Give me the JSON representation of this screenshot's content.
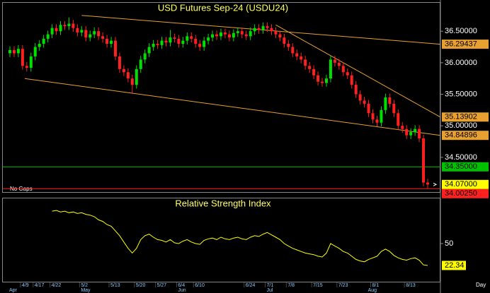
{
  "chart_data": {
    "type": "candlestick",
    "title": "USD Futures Sep-24 (USDU24)",
    "note": "No Gaps",
    "period": "Day",
    "up_color": "#00e000",
    "down_color": "#ff2020",
    "ylim": [
      33.95,
      36.95
    ],
    "yticks": [
      {
        "value": 36.5,
        "label": "36.50000"
      },
      {
        "value": 36.0,
        "label": "36.00000"
      },
      {
        "value": 35.5,
        "label": "35.50000"
      },
      {
        "value": 35.0,
        "label": "35.00000"
      },
      {
        "value": 34.5,
        "label": "34.50000"
      }
    ],
    "categories": [
      null,
      null,
      null,
      "4/9",
      null,
      null,
      "4/17",
      null,
      null,
      null,
      "4/22",
      null,
      null,
      null,
      null,
      null,
      null,
      "5/2",
      null,
      null,
      null,
      null,
      null,
      null,
      "5/13",
      null,
      null,
      null,
      null,
      null,
      "5/20",
      null,
      null,
      null,
      null,
      "5/27",
      null,
      null,
      null,
      null,
      "6/4",
      null,
      null,
      null,
      "6/10",
      null,
      null,
      null,
      null,
      null,
      null,
      null,
      null,
      null,
      null,
      null,
      "6/24",
      null,
      null,
      null,
      null,
      "7/1",
      null,
      null,
      null,
      null,
      "7/8",
      null,
      null,
      null,
      null,
      null,
      "7/15",
      null,
      null,
      null,
      null,
      null,
      "7/23",
      null,
      null,
      null,
      null,
      null,
      null,
      null,
      "8/1",
      null,
      null,
      null,
      null,
      null,
      null,
      null,
      "8/13",
      null,
      null,
      null,
      null,
      null,
      null
    ],
    "months": [
      "Apr",
      null,
      null,
      null,
      null,
      null,
      null,
      null,
      null,
      null,
      null,
      null,
      null,
      null,
      null,
      null,
      null,
      "May",
      null,
      null,
      null,
      null,
      null,
      null,
      null,
      null,
      null,
      null,
      null,
      null,
      null,
      null,
      null,
      null,
      null,
      null,
      null,
      null,
      null,
      null,
      "Jun",
      null,
      null,
      null,
      null,
      null,
      null,
      null,
      null,
      null,
      null,
      null,
      null,
      null,
      null,
      null,
      null,
      null,
      null,
      null,
      null,
      "Jul",
      null,
      null,
      null,
      null,
      null,
      null,
      null,
      null,
      null,
      null,
      null,
      null,
      null,
      null,
      null,
      null,
      null,
      null,
      null,
      null,
      null,
      null,
      null,
      "Aug",
      null,
      null,
      null,
      null,
      null,
      null,
      null,
      null,
      null,
      null,
      null,
      null,
      null,
      null
    ],
    "open": [
      36.15,
      36.2,
      36.15,
      36.22,
      35.95,
      35.92,
      36.1,
      36.25,
      36.3,
      36.38,
      36.45,
      36.55,
      36.5,
      36.6,
      36.58,
      36.62,
      36.55,
      36.48,
      36.52,
      36.4,
      36.45,
      36.5,
      36.42,
      36.38,
      36.3,
      36.35,
      36.1,
      35.9,
      35.85,
      35.75,
      35.65,
      35.9,
      36.05,
      36.15,
      36.25,
      36.3,
      36.28,
      36.35,
      36.32,
      36.4,
      36.38,
      36.3,
      36.35,
      36.42,
      36.38,
      36.3,
      36.25,
      36.35,
      36.4,
      36.45,
      36.42,
      36.48,
      36.45,
      36.4,
      36.47,
      36.5,
      36.45,
      36.42,
      36.5,
      36.55,
      36.52,
      36.58,
      36.55,
      36.5,
      36.45,
      36.4,
      36.3,
      36.25,
      36.15,
      36.1,
      36.05,
      35.95,
      35.9,
      35.8,
      35.7,
      35.68,
      35.75,
      36.05,
      36.0,
      35.95,
      35.85,
      35.8,
      35.65,
      35.5,
      35.4,
      35.35,
      35.2,
      35.1,
      35.05,
      35.25,
      35.45,
      35.35,
      35.2,
      35.0,
      34.95,
      34.85,
      34.9,
      34.95,
      34.8,
      34.1
    ],
    "high": [
      36.26,
      36.26,
      36.28,
      36.28,
      36.01,
      36.16,
      36.31,
      36.36,
      36.44,
      36.51,
      36.61,
      36.61,
      36.66,
      36.66,
      36.72,
      36.68,
      36.61,
      36.58,
      36.58,
      36.51,
      36.56,
      36.56,
      36.48,
      36.44,
      36.41,
      36.41,
      36.16,
      35.96,
      35.91,
      35.81,
      35.96,
      36.11,
      36.21,
      36.31,
      36.36,
      36.36,
      36.41,
      36.41,
      36.52,
      36.46,
      36.44,
      36.41,
      36.48,
      36.48,
      36.44,
      36.36,
      36.41,
      36.46,
      36.51,
      36.51,
      36.54,
      36.54,
      36.51,
      36.53,
      36.56,
      36.56,
      36.51,
      36.56,
      36.61,
      36.61,
      36.64,
      36.64,
      36.61,
      36.56,
      36.51,
      36.46,
      36.36,
      36.31,
      36.21,
      36.16,
      36.11,
      36.01,
      35.96,
      35.86,
      35.76,
      35.81,
      36.11,
      36.11,
      36.06,
      36.01,
      35.91,
      35.86,
      35.71,
      35.56,
      35.46,
      35.41,
      35.26,
      35.16,
      35.31,
      35.51,
      35.51,
      35.41,
      35.26,
      35.06,
      35.01,
      34.96,
      35.01,
      35.01,
      34.86,
      34.16
    ],
    "low": [
      36.09,
      36.09,
      36.09,
      35.89,
      35.86,
      35.86,
      36.04,
      36.19,
      36.24,
      36.32,
      36.39,
      36.44,
      36.44,
      36.52,
      36.52,
      36.49,
      36.42,
      36.42,
      36.34,
      36.34,
      36.39,
      36.36,
      36.32,
      36.24,
      36.24,
      36.04,
      35.84,
      35.79,
      35.69,
      35.52,
      35.59,
      35.84,
      35.99,
      36.09,
      36.19,
      36.22,
      36.22,
      36.26,
      36.26,
      36.32,
      36.24,
      36.24,
      36.29,
      36.32,
      36.24,
      36.19,
      36.19,
      36.29,
      36.34,
      36.36,
      36.36,
      36.39,
      36.34,
      36.34,
      36.41,
      36.39,
      36.36,
      36.36,
      36.44,
      36.46,
      36.46,
      36.49,
      36.44,
      36.39,
      36.34,
      36.24,
      36.19,
      36.09,
      36.04,
      35.99,
      35.89,
      35.84,
      35.74,
      35.64,
      35.62,
      35.62,
      35.69,
      35.94,
      35.89,
      35.79,
      35.74,
      35.59,
      35.44,
      35.34,
      35.29,
      35.14,
      35.04,
      34.99,
      34.99,
      35.19,
      35.29,
      35.14,
      34.94,
      34.89,
      34.79,
      34.79,
      34.84,
      34.74,
      34.04,
      34.01
    ],
    "close": [
      36.2,
      36.15,
      36.22,
      35.95,
      35.92,
      36.1,
      36.25,
      36.3,
      36.38,
      36.45,
      36.55,
      36.5,
      36.6,
      36.58,
      36.62,
      36.55,
      36.48,
      36.52,
      36.4,
      36.45,
      36.5,
      36.42,
      36.38,
      36.3,
      36.35,
      36.1,
      35.9,
      35.85,
      35.75,
      35.65,
      35.9,
      36.05,
      36.15,
      36.25,
      36.3,
      36.28,
      36.35,
      36.32,
      36.4,
      36.38,
      36.3,
      36.35,
      36.42,
      36.38,
      36.3,
      36.25,
      36.35,
      36.4,
      36.45,
      36.42,
      36.48,
      36.45,
      36.4,
      36.47,
      36.5,
      36.45,
      36.42,
      36.5,
      36.55,
      36.52,
      36.58,
      36.55,
      36.5,
      36.45,
      36.4,
      36.3,
      36.25,
      36.15,
      36.1,
      36.05,
      35.95,
      35.9,
      35.8,
      35.7,
      35.68,
      35.75,
      36.05,
      36.0,
      35.95,
      35.85,
      35.8,
      35.65,
      35.5,
      35.4,
      35.35,
      35.2,
      35.1,
      35.05,
      35.25,
      35.45,
      35.35,
      35.2,
      35.0,
      34.95,
      34.85,
      34.9,
      34.95,
      34.8,
      34.1,
      34.07
    ],
    "trendlines": [
      {
        "color": "#e8a030",
        "x": [
          17,
          102
        ],
        "values": [
          36.75,
          36.29437
        ]
      },
      {
        "color": "#e8a030",
        "x": [
          3.5,
          102
        ],
        "values": [
          35.75,
          34.84896
        ]
      },
      {
        "color": "#e8a030",
        "x": [
          63,
          102
        ],
        "values": [
          36.6,
          35.13902
        ]
      }
    ],
    "levels": [
      {
        "color": "#00c000",
        "value": 34.35,
        "label": "34.35000"
      },
      {
        "color": "#ff2020",
        "value": 34.0025,
        "label": "34.00250"
      }
    ],
    "last_price": {
      "color": "#ffff00",
      "value": 34.07,
      "label": "34.07000"
    },
    "rsi": {
      "title": "Relative Strength Index",
      "color": "#ffff00",
      "ylim": [
        0,
        100
      ],
      "yticks": [
        50
      ],
      "values": [
        null,
        null,
        null,
        null,
        null,
        null,
        null,
        null,
        null,
        null,
        91,
        92,
        90,
        91,
        89,
        90,
        88,
        89,
        87,
        86,
        84,
        80,
        78,
        74,
        72,
        66,
        60,
        52,
        44,
        38,
        44,
        55,
        60,
        62,
        58,
        55,
        54,
        52,
        55,
        51,
        50,
        53,
        55,
        52,
        50,
        49,
        54,
        56,
        57,
        55,
        58,
        56,
        55,
        57,
        58,
        56,
        55,
        58,
        60,
        59,
        62,
        64,
        61,
        58,
        55,
        50,
        47,
        44,
        42,
        40,
        38,
        37,
        36,
        34,
        33,
        38,
        50,
        47,
        44,
        40,
        38,
        34,
        30,
        28,
        27,
        30,
        32,
        34,
        40,
        43,
        40,
        35,
        32,
        30,
        29,
        31,
        32,
        29,
        23,
        22.34
      ]
    }
  }
}
